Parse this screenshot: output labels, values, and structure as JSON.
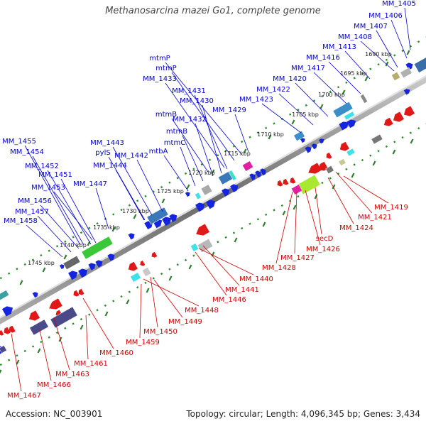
{
  "title": "Methanosarcina mazei Go1, complete genome",
  "accession": "Accession: NC_003901",
  "topology": "Topology: circular; Length: 4,096,345 bp; Genes: 3,434",
  "colors": {
    "forward_label": "#0000cc",
    "reverse_label": "#cc0000",
    "backbone": "#777777",
    "ticks": "#2a8a2a"
  },
  "kbp_ticks": [
    "1690 kbp",
    "1695 kbp",
    "1700 kbp",
    "1705 kbp",
    "1710 kbp",
    "1715 kbp",
    "1720 kbp",
    "1725 kbp",
    "1730 kbp",
    "1735 kbp",
    "1740 kbp",
    "1745 kbp"
  ],
  "forward_labels": [
    "MM_1405",
    "MM_1406",
    "MM_1407",
    "MM_1408",
    "MM_1413",
    "MM_1416",
    "MM_1417",
    "MM_1420",
    "MM_1422",
    "MM_1423",
    "MM_1429",
    "mtmP",
    "mtmP",
    "MM_1433",
    "MM_1431",
    "MM_1430",
    "MM_1432",
    "mtmB",
    "mtmB",
    "mtmC",
    "mtbA",
    "MM_1442",
    "MM_1443",
    "pylS",
    "MM_1444",
    "MM_1447",
    "MM_1455",
    "MM_1454",
    "MM_1452",
    "MM_1451",
    "MM_1453",
    "MM_1456",
    "MM_1457",
    "MM_1458"
  ],
  "reverse_labels": [
    "MM_1419",
    "MM_1421",
    "MM_1424",
    "secD",
    "MM_1426",
    "MM_1427",
    "MM_1428",
    "MM_1440",
    "MM_1441",
    "MM_1446",
    "MM_1448",
    "MM_1449",
    "MM_1450",
    "MM_1459",
    "MM_1460",
    "MM_1461",
    "MM_1463",
    "MM_1466",
    "MM_1467"
  ]
}
